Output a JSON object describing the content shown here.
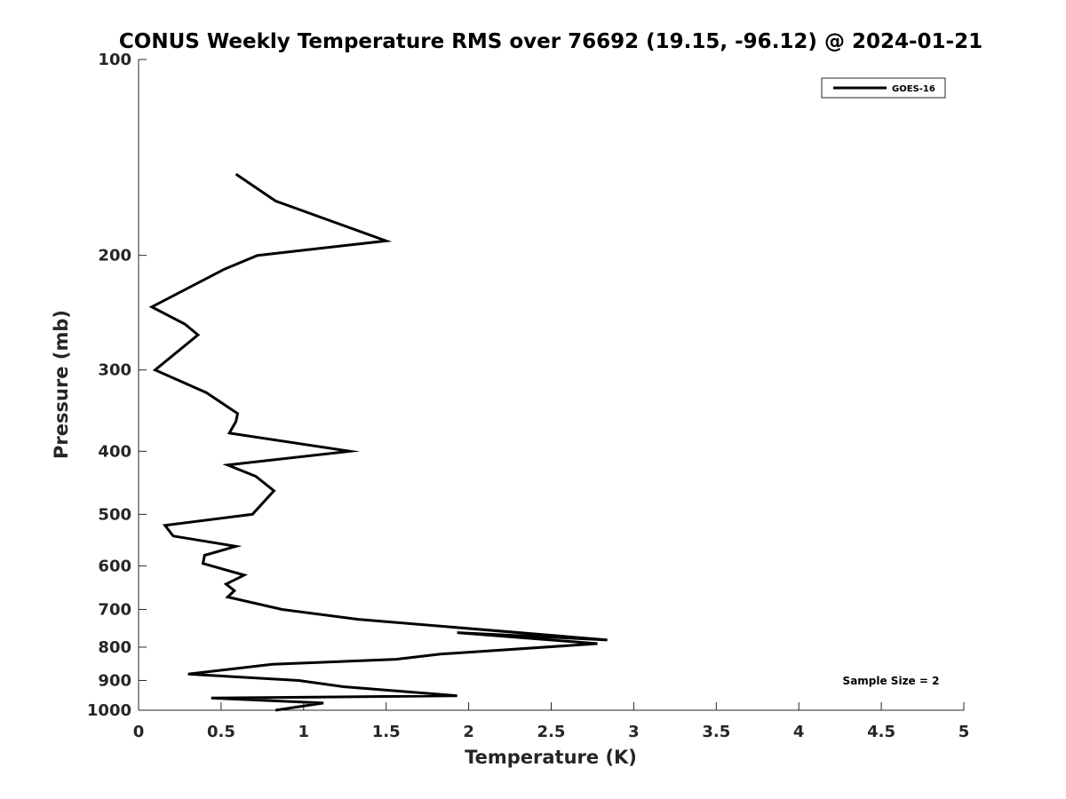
{
  "chart_data": {
    "type": "line",
    "title": "CONUS Weekly Temperature RMS over 76692 (19.15, -96.12) @ 2024-01-21",
    "xlabel": "Temperature (K)",
    "ylabel": "Pressure (mb)",
    "xlim": [
      0,
      5
    ],
    "ylim": [
      1000,
      100
    ],
    "y_scale": "log",
    "y_reversed": true,
    "grid": false,
    "legend_position": "top-right",
    "x_ticks": [
      "0",
      "0.5",
      "1",
      "1.5",
      "2",
      "2.5",
      "3",
      "3.5",
      "4",
      "4.5",
      "5"
    ],
    "y_ticks": [
      "100",
      "200",
      "300",
      "400",
      "500",
      "600",
      "700",
      "800",
      "900",
      "1000"
    ],
    "annotation": "Sample Size = 2",
    "series": [
      {
        "name": "GOES-16",
        "color": "#000000",
        "x": [
          0.59,
          0.83,
          1.5,
          0.72,
          0.52,
          0.08,
          0.28,
          0.36,
          0.1,
          0.41,
          0.6,
          0.59,
          0.55,
          1.28,
          0.54,
          0.71,
          0.82,
          0.69,
          0.16,
          0.21,
          0.59,
          0.4,
          0.39,
          0.64,
          0.53,
          0.58,
          0.54,
          0.87,
          1.33,
          2.84,
          1.93,
          2.78,
          1.83,
          1.56,
          0.81,
          0.3,
          0.97,
          1.24,
          1.93,
          0.44,
          1.12,
          0.83
        ],
        "y": [
          150,
          165,
          190,
          200,
          210,
          240,
          255,
          265,
          300,
          325,
          350,
          360,
          375,
          400,
          420,
          437,
          460,
          500,
          520,
          540,
          560,
          578,
          595,
          620,
          640,
          655,
          670,
          700,
          725,
          780,
          760,
          790,
          820,
          835,
          850,
          880,
          900,
          920,
          950,
          958,
          975,
          1000
        ]
      }
    ]
  }
}
